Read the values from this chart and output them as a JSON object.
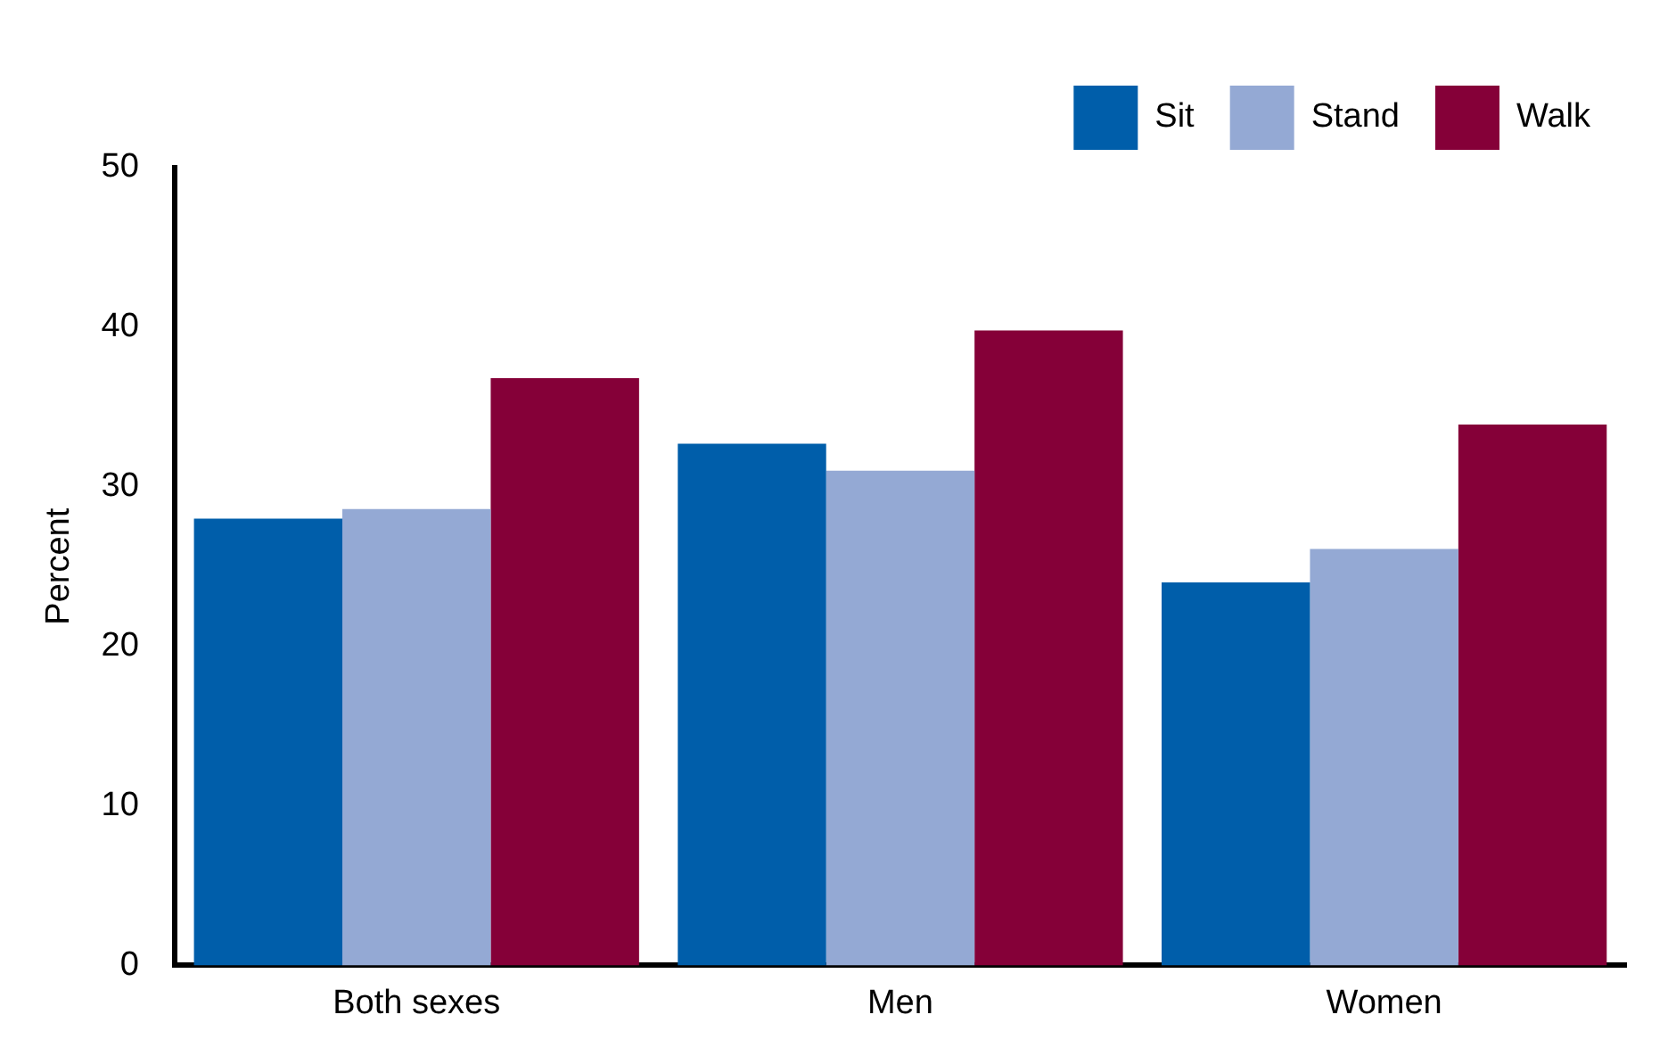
{
  "chart_data": {
    "type": "bar",
    "ylabel": "Percent",
    "categories": [
      "Both sexes",
      "Men",
      "Women"
    ],
    "series": [
      {
        "name": "Sit",
        "color": "#005eaa",
        "values": [
          28.0,
          32.7,
          24.0
        ]
      },
      {
        "name": "Stand",
        "color": "#94a9d4",
        "values": [
          28.6,
          31.0,
          26.1
        ]
      },
      {
        "name": "Walk",
        "color": "#850038",
        "values": [
          36.8,
          39.8,
          33.9
        ]
      }
    ],
    "ylim": [
      0,
      50
    ],
    "yticks": [
      0,
      10,
      20,
      30,
      40,
      50
    ],
    "grid": false,
    "legend": "top right"
  }
}
